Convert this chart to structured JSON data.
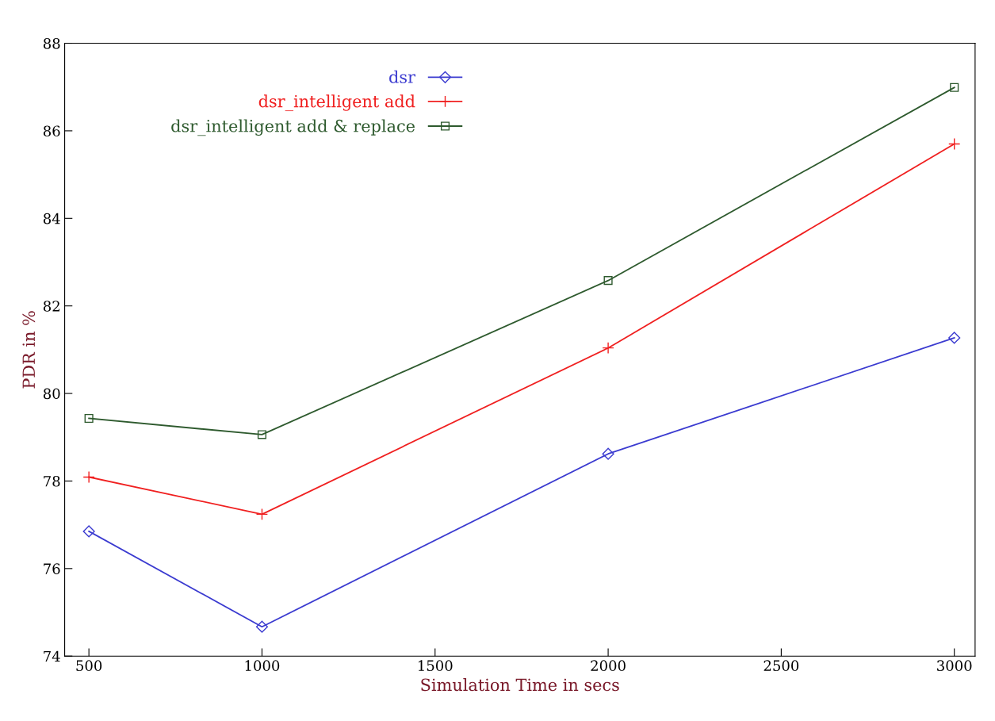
{
  "chart_data": {
    "type": "line",
    "xlabel": "Simulation Time in secs",
    "ylabel": "PDR in %",
    "x": [
      500,
      1000,
      2000,
      3000
    ],
    "series": [
      {
        "name": "dsr",
        "color": "#3b3bd0",
        "marker": "diamond",
        "values": [
          76.85,
          74.67,
          78.62,
          81.27
        ]
      },
      {
        "name": "dsr_intelligent add",
        "color": "#f02020",
        "marker": "cross",
        "values": [
          78.09,
          77.24,
          81.04,
          85.7
        ]
      },
      {
        "name": "dsr_intelligent add & replace",
        "color": "#2e5a2e",
        "marker": "square",
        "values": [
          79.43,
          79.06,
          82.58,
          86.99
        ]
      }
    ],
    "xlim": [
      430,
      3060
    ],
    "xticks": [
      500,
      1000,
      1500,
      2000,
      2500,
      3000
    ],
    "ylim": [
      74,
      88
    ],
    "yticks": [
      74,
      76,
      78,
      80,
      82,
      84,
      86,
      88
    ],
    "grid": false,
    "legend": "top left",
    "line_style": "solid"
  }
}
